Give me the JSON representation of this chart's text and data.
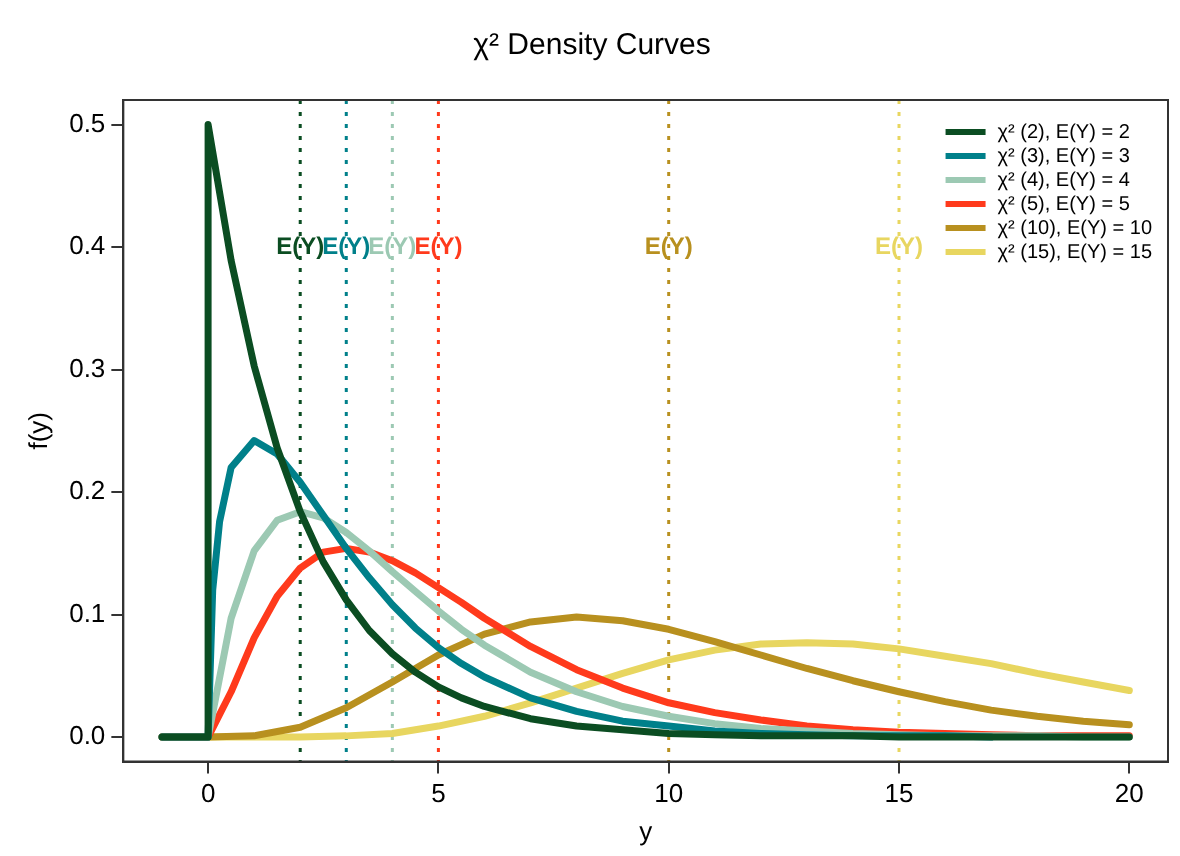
{
  "chart_data": {
    "type": "line",
    "title": "χ² Density Curves",
    "xlabel": "y",
    "ylabel": "f(y)",
    "xlim": [
      -1.84,
      20.84
    ],
    "ylim": [
      -0.02,
      0.52
    ],
    "xticks": [
      0,
      5,
      10,
      15,
      20
    ],
    "yticks": [
      {
        "value": 0,
        "label": "0.0"
      },
      {
        "value": 0.1,
        "label": "0.1"
      },
      {
        "value": 0.2,
        "label": "0.2"
      },
      {
        "value": 0.3,
        "label": "0.3"
      },
      {
        "value": 0.4,
        "label": "0.4"
      },
      {
        "value": 0.5,
        "label": "0.5"
      }
    ],
    "grid": false,
    "legend": "top right",
    "marker": "none",
    "line_style": "solid",
    "series": [
      {
        "name": "χ² (2), E(Y) = 2",
        "color": "#0b4d22",
        "x": [
          -1,
          0,
          0,
          0.5,
          1,
          1.5,
          2,
          2.5,
          3,
          3.5,
          4,
          4.5,
          5,
          5.5,
          6,
          7,
          8,
          9,
          10,
          11,
          12,
          13,
          14,
          15,
          16,
          17,
          18,
          19,
          20
        ],
        "values": [
          0,
          0,
          0.5,
          0.389,
          0.303,
          0.236,
          0.184,
          0.143,
          0.112,
          0.087,
          0.068,
          0.053,
          0.041,
          0.032,
          0.025,
          0.015,
          0.009,
          0.006,
          0.003,
          0.002,
          0.001,
          0.001,
          0.001,
          0,
          0,
          0,
          0,
          0,
          0
        ]
      },
      {
        "name": "χ² (3), E(Y) = 3",
        "color": "#00808a",
        "x": [
          -1,
          0,
          0.1,
          0.25,
          0.5,
          1,
          1.5,
          2,
          2.5,
          3,
          3.5,
          4,
          4.5,
          5,
          5.5,
          6,
          7,
          8,
          9,
          10,
          11,
          12,
          13,
          14,
          15,
          16,
          17
        ],
        "values": [
          0,
          0,
          0.12,
          0.176,
          0.22,
          0.242,
          0.231,
          0.208,
          0.181,
          0.154,
          0.13,
          0.108,
          0.089,
          0.073,
          0.06,
          0.049,
          0.032,
          0.021,
          0.013,
          0.009,
          0.005,
          0.003,
          0.002,
          0.001,
          0.001,
          0.001,
          0
        ]
      },
      {
        "name": "χ² (4), E(Y) = 4",
        "color": "#9cc9b3",
        "x": [
          -1,
          0,
          0.5,
          1,
          1.5,
          2,
          2.5,
          3,
          3.5,
          4,
          4.5,
          5,
          5.5,
          6,
          7,
          8,
          9,
          10,
          11,
          12,
          13,
          14,
          15,
          16,
          17,
          18,
          19,
          20
        ],
        "values": [
          0,
          0,
          0.097,
          0.152,
          0.177,
          0.184,
          0.179,
          0.167,
          0.152,
          0.135,
          0.119,
          0.103,
          0.088,
          0.075,
          0.053,
          0.037,
          0.025,
          0.017,
          0.011,
          0.007,
          0.005,
          0.003,
          0.002,
          0.001,
          0.001,
          0.001,
          0,
          0
        ]
      },
      {
        "name": "χ² (5), E(Y) = 5",
        "color": "#ff3a1c",
        "x": [
          -1,
          0,
          0.5,
          1,
          1.5,
          2,
          2.5,
          3,
          3.5,
          4,
          4.5,
          5,
          5.5,
          6,
          7,
          8,
          9,
          10,
          11,
          12,
          13,
          14,
          15,
          16,
          17,
          18,
          19,
          20
        ],
        "values": [
          0,
          0,
          0.037,
          0.081,
          0.115,
          0.138,
          0.151,
          0.154,
          0.151,
          0.144,
          0.134,
          0.122,
          0.11,
          0.097,
          0.074,
          0.055,
          0.04,
          0.028,
          0.02,
          0.014,
          0.009,
          0.006,
          0.004,
          0.003,
          0.002,
          0.001,
          0.001,
          0.001
        ]
      },
      {
        "name": "χ² (10), E(Y) = 10",
        "color": "#b8901f",
        "x": [
          -1,
          0,
          1,
          2,
          3,
          4,
          5,
          6,
          7,
          8,
          9,
          10,
          11,
          12,
          13,
          14,
          15,
          16,
          17,
          18,
          19,
          20
        ],
        "values": [
          0,
          0,
          0.001,
          0.008,
          0.024,
          0.045,
          0.067,
          0.084,
          0.094,
          0.098,
          0.095,
          0.088,
          0.078,
          0.067,
          0.056,
          0.046,
          0.037,
          0.029,
          0.022,
          0.017,
          0.013,
          0.01
        ]
      },
      {
        "name": "χ² (15), E(Y) = 15",
        "color": "#e8d660",
        "x": [
          -1,
          0,
          2,
          3,
          4,
          5,
          6,
          7,
          8,
          9,
          10,
          11,
          12,
          13,
          14,
          15,
          16,
          17,
          18,
          19,
          20
        ],
        "values": [
          0,
          0,
          0,
          0.001,
          0.003,
          0.009,
          0.017,
          0.028,
          0.04,
          0.052,
          0.063,
          0.071,
          0.076,
          0.077,
          0.076,
          0.072,
          0.066,
          0.06,
          0.052,
          0.045,
          0.038
        ]
      }
    ],
    "ref_lines": [
      {
        "axis": "x",
        "value": 2,
        "label": "E(Y)",
        "color": "#0b4d22",
        "line_style": "dotted"
      },
      {
        "axis": "x",
        "value": 3,
        "label": "E(Y)",
        "color": "#00808a",
        "line_style": "dotted"
      },
      {
        "axis": "x",
        "value": 4,
        "label": "E(Y)",
        "color": "#9cc9b3",
        "line_style": "dotted"
      },
      {
        "axis": "x",
        "value": 5,
        "label": "E(Y)",
        "color": "#ff3a1c",
        "line_style": "dotted"
      },
      {
        "axis": "x",
        "value": 10,
        "label": "E(Y)",
        "color": "#b8901f",
        "line_style": "dotted"
      },
      {
        "axis": "x",
        "value": 15,
        "label": "E(Y)",
        "color": "#e8d660",
        "line_style": "dotted"
      }
    ]
  }
}
